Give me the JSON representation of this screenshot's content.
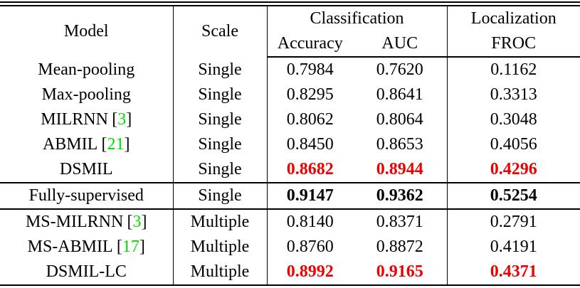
{
  "table": {
    "header": {
      "model": "Model",
      "scale": "Scale",
      "classification": "Classification",
      "accuracy": "Accuracy",
      "auc": "AUC",
      "localization": "Localization",
      "froc": "FROC"
    },
    "cite_open": "[",
    "cite_close": "]",
    "rows": [
      {
        "model": "Mean-pooling",
        "cite": "",
        "scale": "Single",
        "accuracy": "0.7984",
        "auc": "0.7620",
        "froc": "0.1162",
        "emphasis": "none",
        "rule_below": false
      },
      {
        "model": "Max-pooling",
        "cite": "",
        "scale": "Single",
        "accuracy": "0.8295",
        "auc": "0.8641",
        "froc": "0.3313",
        "emphasis": "none",
        "rule_below": false
      },
      {
        "model": "MILRNN",
        "cite": "3",
        "scale": "Single",
        "accuracy": "0.8062",
        "auc": "0.8064",
        "froc": "0.3048",
        "emphasis": "none",
        "rule_below": false
      },
      {
        "model": "ABMIL",
        "cite": "21",
        "scale": "Single",
        "accuracy": "0.8450",
        "auc": "0.8653",
        "froc": "0.4056",
        "emphasis": "none",
        "rule_below": false
      },
      {
        "model": "DSMIL",
        "cite": "",
        "scale": "Single",
        "accuracy": "0.8682",
        "auc": "0.8944",
        "froc": "0.4296",
        "emphasis": "red-bold",
        "rule_below": true
      },
      {
        "model": "Fully-supervised",
        "cite": "",
        "scale": "Single",
        "accuracy": "0.9147",
        "auc": "0.9362",
        "froc": "0.5254",
        "emphasis": "bold",
        "rule_below": true
      },
      {
        "model": "MS-MILRNN",
        "cite": "3",
        "scale": "Multiple",
        "accuracy": "0.8140",
        "auc": "0.8371",
        "froc": "0.2791",
        "emphasis": "none",
        "rule_below": false
      },
      {
        "model": "MS-ABMIL",
        "cite": "17",
        "scale": "Multiple",
        "accuracy": "0.8760",
        "auc": "0.8872",
        "froc": "0.4191",
        "emphasis": "none",
        "rule_below": false
      },
      {
        "model": "DSMIL-LC",
        "cite": "",
        "scale": "Multiple",
        "accuracy": "0.8992",
        "auc": "0.9165",
        "froc": "0.4371",
        "emphasis": "red-bold",
        "rule_below": false
      }
    ],
    "colors": {
      "highlight_red": "#ee0000",
      "citation_green": "#00dd00",
      "line_black": "#000000"
    }
  }
}
